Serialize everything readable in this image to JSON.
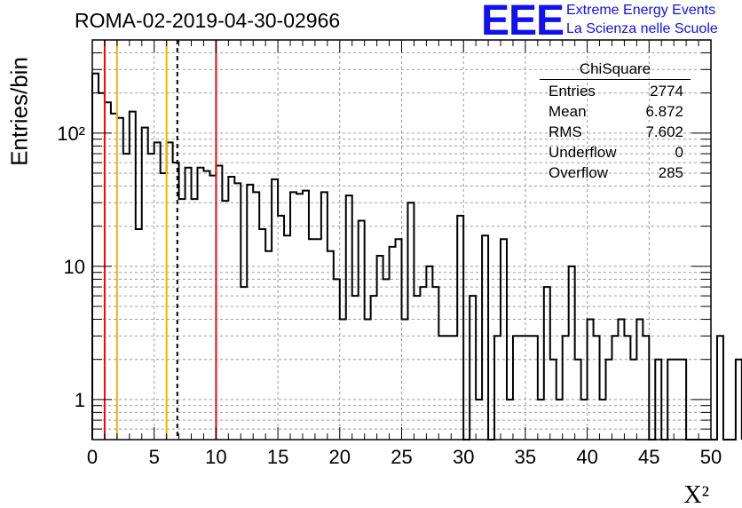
{
  "chart_data": {
    "type": "histogram",
    "title": "ROMA-02-2019-04-30-02966",
    "xlabel": "X²",
    "ylabel": "Entries/bin",
    "xlim": [
      0,
      50
    ],
    "ylim": [
      0.5,
      500
    ],
    "yscale": "log",
    "grid": true,
    "bin_width": 0.5,
    "x_ticks": [
      "0",
      "5",
      "10",
      "15",
      "20",
      "25",
      "30",
      "35",
      "40",
      "45",
      "50"
    ],
    "y_ticks": [
      "1",
      "10",
      "10²"
    ],
    "values": [
      280,
      200,
      170,
      140,
      130,
      70,
      145,
      19,
      110,
      70,
      85,
      50,
      85,
      60,
      32,
      55,
      32,
      55,
      52,
      48,
      57,
      31,
      47,
      42,
      7,
      41,
      36,
      19,
      13,
      45,
      24,
      17,
      36,
      35,
      37,
      16,
      16,
      36,
      13,
      8,
      4,
      34,
      6,
      22,
      4,
      6,
      12,
      8,
      14,
      16,
      4,
      30,
      6,
      7,
      10,
      7,
      3,
      3,
      3,
      24,
      0.5,
      6,
      1,
      17,
      0.5,
      3,
      16,
      1,
      3,
      3,
      3,
      3,
      1,
      7,
      2,
      1,
      3,
      10,
      2,
      1,
      4,
      3,
      1,
      2,
      3,
      4,
      3,
      2,
      4,
      3,
      0.5,
      2,
      0.5,
      2,
      2,
      2,
      0.5,
      0.5,
      0.5,
      0.5,
      0.5,
      3,
      0.5,
      0.5,
      2
    ],
    "vertical_lines": [
      {
        "x": 1,
        "color": "#e01010",
        "style": "solid"
      },
      {
        "x": 2,
        "color": "#f0b400",
        "style": "solid"
      },
      {
        "x": 6,
        "color": "#f0b400",
        "style": "solid"
      },
      {
        "x": 6.872,
        "color": "#000000",
        "style": "dashed"
      },
      {
        "x": 10,
        "color": "#e01010",
        "style": "solid"
      }
    ],
    "stats": {
      "name": "ChiSquare",
      "rows": [
        {
          "label": "Entries",
          "value": "2774"
        },
        {
          "label": "Mean",
          "value": "6.872"
        },
        {
          "label": "RMS",
          "value": "7.602"
        },
        {
          "label": "Underflow",
          "value": "0"
        },
        {
          "label": "Overflow",
          "value": "285"
        }
      ]
    }
  },
  "logo": {
    "text": "EEE",
    "line1": "Extreme Energy Events",
    "line2": "La Scienza nelle Scuole",
    "color": "#1010f0"
  }
}
